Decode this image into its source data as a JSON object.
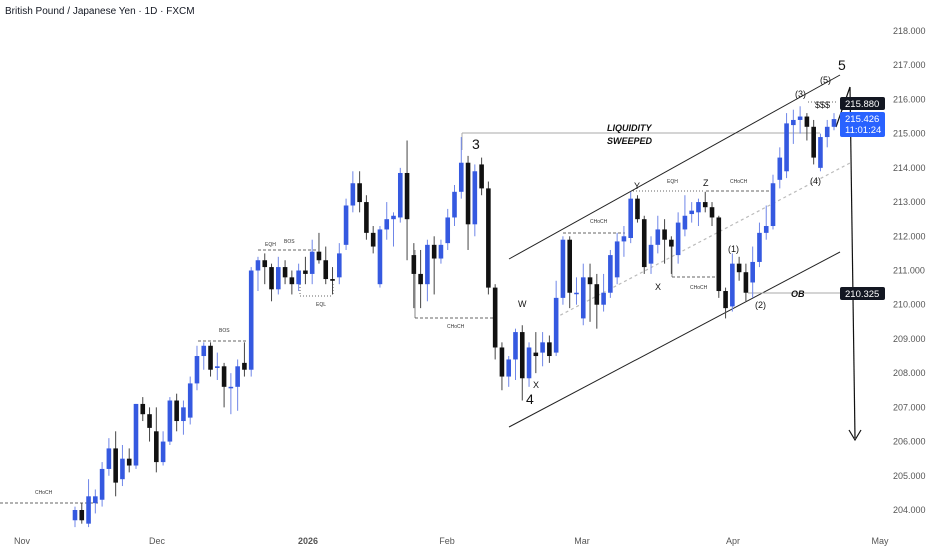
{
  "header": {
    "title": "British Pound / Japanese Yen · 1D · FXCM"
  },
  "colors": {
    "up": "#3559e0",
    "down": "#111111",
    "last_price_tag": "#2962ff",
    "tag_dark": "#131722"
  },
  "chart_data": {
    "type": "candlestick",
    "symbol": "British Pound / Japanese Yen",
    "interval": "1D",
    "ylim": [
      203.6,
      218.3
    ],
    "y_ticks": [
      "204.000",
      "205.000",
      "206.000",
      "207.000",
      "208.000",
      "209.000",
      "210.000",
      "211.000",
      "212.000",
      "213.000",
      "214.000",
      "215.000",
      "216.000",
      "217.000",
      "218.000"
    ],
    "x_ticks": [
      {
        "label": "Nov",
        "bold": false
      },
      {
        "label": "Dec",
        "bold": false
      },
      {
        "label": "2026",
        "bold": true
      },
      {
        "label": "Feb",
        "bold": false
      },
      {
        "label": "Mar",
        "bold": false
      },
      {
        "label": "Apr",
        "bold": false
      },
      {
        "label": "May",
        "bold": false
      }
    ],
    "candles_ohlc": [
      [
        203.7,
        204.1,
        203.5,
        204.0
      ],
      [
        204.0,
        204.2,
        203.6,
        203.7
      ],
      [
        203.6,
        204.9,
        203.5,
        204.4
      ],
      [
        204.2,
        204.6,
        203.9,
        204.4
      ],
      [
        204.3,
        205.4,
        204.1,
        205.2
      ],
      [
        205.2,
        206.1,
        205.0,
        205.8
      ],
      [
        205.8,
        206.3,
        204.4,
        204.8
      ],
      [
        204.9,
        205.9,
        204.7,
        205.5
      ],
      [
        205.5,
        205.8,
        205.1,
        205.3
      ],
      [
        205.3,
        207.1,
        205.2,
        207.1
      ],
      [
        207.1,
        207.3,
        206.6,
        206.8
      ],
      [
        206.8,
        207.0,
        206.0,
        206.4
      ],
      [
        206.3,
        207.0,
        205.1,
        205.4
      ],
      [
        205.4,
        206.3,
        205.3,
        206.0
      ],
      [
        206.0,
        207.3,
        205.9,
        207.2
      ],
      [
        207.2,
        207.4,
        206.3,
        206.6
      ],
      [
        206.6,
        207.2,
        206.2,
        207.0
      ],
      [
        206.7,
        207.9,
        206.5,
        207.7
      ],
      [
        207.7,
        208.8,
        207.5,
        208.5
      ],
      [
        208.5,
        208.9,
        208.1,
        208.8
      ],
      [
        208.8,
        208.9,
        207.9,
        208.1
      ],
      [
        208.15,
        208.6,
        207.8,
        208.2
      ],
      [
        208.2,
        208.3,
        207.0,
        207.6
      ],
      [
        207.6,
        208.0,
        206.8,
        207.6
      ],
      [
        207.6,
        208.4,
        206.9,
        208.2
      ],
      [
        208.3,
        208.9,
        207.9,
        208.1
      ],
      [
        208.1,
        211.1,
        207.9,
        211.0
      ],
      [
        211.0,
        211.4,
        210.4,
        211.3
      ],
      [
        211.3,
        211.5,
        210.6,
        211.1
      ],
      [
        211.1,
        211.2,
        210.1,
        210.45
      ],
      [
        210.45,
        211.4,
        210.3,
        211.1
      ],
      [
        211.1,
        211.3,
        210.6,
        210.8
      ],
      [
        210.8,
        211.0,
        210.3,
        210.6
      ],
      [
        210.6,
        211.2,
        210.4,
        211.0
      ],
      [
        211.0,
        211.4,
        210.6,
        210.9
      ],
      [
        210.9,
        211.9,
        210.6,
        211.55
      ],
      [
        211.55,
        212.1,
        211.2,
        211.3
      ],
      [
        211.3,
        211.7,
        210.6,
        210.75
      ],
      [
        210.75,
        211.1,
        210.3,
        210.7
      ],
      [
        210.8,
        211.8,
        210.6,
        211.5
      ],
      [
        211.75,
        213.1,
        211.6,
        212.9
      ],
      [
        212.9,
        213.9,
        212.7,
        213.55
      ],
      [
        213.55,
        213.9,
        212.7,
        213.0
      ],
      [
        213.0,
        213.2,
        211.9,
        212.1
      ],
      [
        212.1,
        212.3,
        211.5,
        211.7
      ],
      [
        210.6,
        212.3,
        210.5,
        212.2
      ],
      [
        212.2,
        213.0,
        211.9,
        212.5
      ],
      [
        212.5,
        212.7,
        211.7,
        212.6
      ],
      [
        212.55,
        214.0,
        212.4,
        213.85
      ],
      [
        213.85,
        214.8,
        211.3,
        212.5
      ],
      [
        211.45,
        211.8,
        209.9,
        210.9
      ],
      [
        210.9,
        211.6,
        209.9,
        210.6
      ],
      [
        210.6,
        211.9,
        210.1,
        211.75
      ],
      [
        211.75,
        212.0,
        210.3,
        211.35
      ],
      [
        211.35,
        211.9,
        211.2,
        211.75
      ],
      [
        211.8,
        212.8,
        211.6,
        212.55
      ],
      [
        212.55,
        213.5,
        212.3,
        213.3
      ],
      [
        213.3,
        214.9,
        213.1,
        214.15
      ],
      [
        214.15,
        214.35,
        211.6,
        212.35
      ],
      [
        212.35,
        214.1,
        212.0,
        213.9
      ],
      [
        214.1,
        214.3,
        213.2,
        213.4
      ],
      [
        213.4,
        213.6,
        210.3,
        210.5
      ],
      [
        210.5,
        210.6,
        208.4,
        208.75
      ],
      [
        208.75,
        208.9,
        207.5,
        207.9
      ],
      [
        207.9,
        208.5,
        207.6,
        208.4
      ],
      [
        208.4,
        209.3,
        207.8,
        209.2
      ],
      [
        209.2,
        209.4,
        207.2,
        207.85
      ],
      [
        207.85,
        208.9,
        207.6,
        208.75
      ],
      [
        208.6,
        209.2,
        208.0,
        208.5
      ],
      [
        208.6,
        209.2,
        208.2,
        208.9
      ],
      [
        208.9,
        209.1,
        208.3,
        208.5
      ],
      [
        208.6,
        210.7,
        208.5,
        210.2
      ],
      [
        210.2,
        212.0,
        210.0,
        211.9
      ],
      [
        211.9,
        212.0,
        209.9,
        210.35
      ],
      [
        210.35,
        210.8,
        210.0,
        210.35
      ],
      [
        209.6,
        211.2,
        209.4,
        210.8
      ],
      [
        210.8,
        211.2,
        209.5,
        210.6
      ],
      [
        210.6,
        210.9,
        209.3,
        210.0
      ],
      [
        210.0,
        210.9,
        209.8,
        210.35
      ],
      [
        210.35,
        211.6,
        210.2,
        211.45
      ],
      [
        210.8,
        212.1,
        210.6,
        211.85
      ],
      [
        211.85,
        212.3,
        211.4,
        212.0
      ],
      [
        211.95,
        213.3,
        211.8,
        213.1
      ],
      [
        213.1,
        213.2,
        212.4,
        212.5
      ],
      [
        212.5,
        212.6,
        210.9,
        211.1
      ],
      [
        211.2,
        212.0,
        210.9,
        211.75
      ],
      [
        211.75,
        212.6,
        211.5,
        212.2
      ],
      [
        212.2,
        212.5,
        211.2,
        211.9
      ],
      [
        211.9,
        212.0,
        210.9,
        211.7
      ],
      [
        211.45,
        212.7,
        211.2,
        212.4
      ],
      [
        212.2,
        213.2,
        212.0,
        212.6
      ],
      [
        212.65,
        213.0,
        212.4,
        212.75
      ],
      [
        212.7,
        213.1,
        212.3,
        213.0
      ],
      [
        213.0,
        213.3,
        212.7,
        212.85
      ],
      [
        212.85,
        213.0,
        212.3,
        212.55
      ],
      [
        212.55,
        212.6,
        210.2,
        210.4
      ],
      [
        210.4,
        210.5,
        209.6,
        209.9
      ],
      [
        209.95,
        211.5,
        209.8,
        211.2
      ],
      [
        211.2,
        211.4,
        210.7,
        210.95
      ],
      [
        210.95,
        211.2,
        210.1,
        210.35
      ],
      [
        210.65,
        211.7,
        210.2,
        211.25
      ],
      [
        211.25,
        212.4,
        211.1,
        212.1
      ],
      [
        212.1,
        212.9,
        211.9,
        212.3
      ],
      [
        212.3,
        213.8,
        212.2,
        213.55
      ],
      [
        213.65,
        214.6,
        213.4,
        214.3
      ],
      [
        213.9,
        215.6,
        213.7,
        215.3
      ],
      [
        215.25,
        215.7,
        214.7,
        215.4
      ],
      [
        215.4,
        215.8,
        215.0,
        215.5
      ],
      [
        215.5,
        215.6,
        214.8,
        215.2
      ],
      [
        215.2,
        215.4,
        214.1,
        214.3
      ],
      [
        214.0,
        215.0,
        213.9,
        214.9
      ],
      [
        214.9,
        215.4,
        214.6,
        215.2
      ],
      [
        215.2,
        215.6,
        215.1,
        215.426
      ]
    ],
    "price_tags": {
      "high_level": "215.880",
      "last_price": "215.426",
      "countdown": "11:01:24",
      "ob_level": "210.325"
    },
    "annotations": {
      "choch": "CHoCH",
      "bos": "BOS",
      "eqh": "EQH",
      "eql": "EQL",
      "liquidity_line1": "LIQUIDITY",
      "liquidity_line2": "SWEEPED",
      "wave_3": "3",
      "wave_4": "4",
      "wave_5": "5",
      "w": "W",
      "x": "X",
      "y": "Y",
      "z": "Z",
      "sub_1": "(1)",
      "sub_2": "(2)",
      "sub_3": "(3)",
      "sub_4": "(4)",
      "sub_5": "(5)",
      "liquidity_target": "$$$",
      "ob": "OB"
    }
  }
}
